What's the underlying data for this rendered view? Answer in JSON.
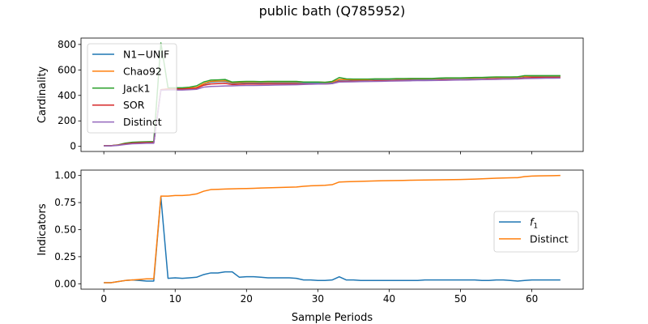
{
  "figure": {
    "title": "public bath (Q785952)"
  },
  "chart_data": [
    {
      "type": "line",
      "title": "",
      "xlabel": "",
      "ylabel": "Cardinality",
      "xlim": [
        -3.2,
        67.2
      ],
      "ylim": [
        -40,
        850
      ],
      "x_ticks": [
        0,
        10,
        20,
        30,
        40,
        50,
        60
      ],
      "x_ticklabels_visible": false,
      "y_ticks": [
        0,
        200,
        400,
        600,
        800
      ],
      "grid": false,
      "legend": "upper left",
      "x": [
        0,
        1,
        2,
        3,
        4,
        5,
        6,
        7,
        8,
        9,
        10,
        11,
        12,
        13,
        14,
        15,
        16,
        17,
        18,
        19,
        20,
        21,
        22,
        23,
        24,
        25,
        26,
        27,
        28,
        29,
        30,
        31,
        32,
        33,
        34,
        35,
        36,
        37,
        38,
        39,
        40,
        41,
        42,
        43,
        44,
        45,
        46,
        47,
        48,
        49,
        50,
        51,
        52,
        53,
        54,
        55,
        56,
        57,
        58,
        59,
        60,
        61,
        62,
        63,
        64
      ],
      "series": [
        {
          "name": "N1−UNIF",
          "color": "#1f77b4",
          "values": [
            5,
            5,
            10,
            20,
            25,
            28,
            30,
            30,
            445,
            452,
            455,
            455,
            458,
            462,
            490,
            505,
            508,
            510,
            496,
            498,
            500,
            500,
            500,
            502,
            502,
            502,
            502,
            502,
            500,
            500,
            500,
            500,
            502,
            520,
            520,
            522,
            522,
            522,
            525,
            525,
            525,
            527,
            527,
            528,
            528,
            528,
            528,
            530,
            532,
            532,
            532,
            533,
            535,
            535,
            538,
            540,
            540,
            540,
            541,
            548,
            550,
            550,
            550,
            550,
            550
          ]
        },
        {
          "name": "Chao92",
          "color": "#ff7f0e",
          "values": [
            5,
            5,
            10,
            20,
            25,
            28,
            30,
            30,
            445,
            452,
            455,
            455,
            458,
            462,
            492,
            510,
            512,
            515,
            500,
            502,
            505,
            505,
            505,
            506,
            507,
            507,
            507,
            507,
            505,
            505,
            505,
            503,
            505,
            525,
            524,
            524,
            524,
            524,
            528,
            528,
            528,
            530,
            530,
            531,
            531,
            531,
            531,
            533,
            535,
            535,
            535,
            536,
            538,
            538,
            540,
            542,
            542,
            542,
            543,
            550,
            552,
            552,
            552,
            552,
            552
          ]
        },
        {
          "name": "Jack1",
          "color": "#2ca02c",
          "values": [
            5,
            5,
            12,
            25,
            32,
            35,
            36,
            38,
            812,
            460,
            460,
            460,
            465,
            475,
            505,
            520,
            522,
            525,
            505,
            508,
            510,
            510,
            508,
            510,
            510,
            510,
            510,
            510,
            505,
            505,
            505,
            503,
            510,
            540,
            530,
            528,
            528,
            528,
            530,
            530,
            530,
            532,
            532,
            533,
            533,
            533,
            533,
            536,
            538,
            538,
            538,
            539,
            541,
            541,
            543,
            545,
            545,
            545,
            546,
            555,
            555,
            555,
            555,
            555,
            555
          ]
        },
        {
          "name": "SOR",
          "color": "#d62728",
          "values": [
            5,
            5,
            10,
            20,
            25,
            28,
            30,
            30,
            445,
            448,
            450,
            450,
            452,
            456,
            480,
            490,
            492,
            495,
            485,
            488,
            490,
            490,
            490,
            491,
            491,
            491,
            491,
            491,
            490,
            490,
            490,
            490,
            492,
            510,
            510,
            512,
            512,
            512,
            515,
            515,
            515,
            517,
            517,
            518,
            518,
            518,
            518,
            520,
            522,
            522,
            522,
            523,
            525,
            525,
            528,
            530,
            530,
            530,
            531,
            538,
            540,
            540,
            540,
            540,
            540
          ]
        },
        {
          "name": "Distinct",
          "color": "#9467bd",
          "values": [
            4,
            4,
            8,
            15,
            20,
            22,
            24,
            24,
            440,
            442,
            442,
            442,
            445,
            448,
            465,
            470,
            472,
            474,
            475,
            477,
            478,
            478,
            479,
            480,
            481,
            482,
            483,
            484,
            486,
            488,
            489,
            490,
            492,
            505,
            506,
            507,
            508,
            509,
            510,
            511,
            512,
            513,
            514,
            515,
            516,
            516,
            517,
            518,
            519,
            520,
            521,
            522,
            523,
            524,
            525,
            526,
            527,
            528,
            529,
            532,
            533,
            534,
            535,
            535,
            536
          ]
        }
      ]
    },
    {
      "type": "line",
      "title": "",
      "xlabel": "Sample Periods",
      "ylabel": "Indicators",
      "xlim": [
        -3.2,
        67.2
      ],
      "ylim": [
        -0.05,
        1.05
      ],
      "x_ticks": [
        0,
        10,
        20,
        30,
        40,
        50,
        60
      ],
      "y_ticks": [
        0.0,
        0.25,
        0.5,
        0.75,
        1.0
      ],
      "y_ticklabels": [
        "0.00",
        "0.25",
        "0.50",
        "0.75",
        "1.00"
      ],
      "grid": false,
      "legend": "center right",
      "x": [
        0,
        1,
        2,
        3,
        4,
        5,
        6,
        7,
        8,
        9,
        10,
        11,
        12,
        13,
        14,
        15,
        16,
        17,
        18,
        19,
        20,
        21,
        22,
        23,
        24,
        25,
        26,
        27,
        28,
        29,
        30,
        31,
        32,
        33,
        34,
        35,
        36,
        37,
        38,
        39,
        40,
        41,
        42,
        43,
        44,
        45,
        46,
        47,
        48,
        49,
        50,
        51,
        52,
        53,
        54,
        55,
        56,
        57,
        58,
        59,
        60,
        61,
        62,
        63,
        64
      ],
      "series": [
        {
          "name": "f",
          "name_subscript": "1",
          "color": "#1f77b4",
          "values": [
            0.01,
            0.01,
            0.02,
            0.03,
            0.035,
            0.03,
            0.025,
            0.025,
            0.8,
            0.05,
            0.055,
            0.05,
            0.055,
            0.06,
            0.085,
            0.1,
            0.1,
            0.11,
            0.11,
            0.06,
            0.065,
            0.065,
            0.06,
            0.055,
            0.055,
            0.055,
            0.055,
            0.05,
            0.035,
            0.035,
            0.03,
            0.03,
            0.035,
            0.065,
            0.035,
            0.035,
            0.03,
            0.03,
            0.03,
            0.03,
            0.03,
            0.03,
            0.03,
            0.03,
            0.03,
            0.035,
            0.035,
            0.035,
            0.035,
            0.035,
            0.035,
            0.035,
            0.035,
            0.03,
            0.03,
            0.035,
            0.035,
            0.03,
            0.025,
            0.03,
            0.035,
            0.035,
            0.035,
            0.035,
            0.035
          ]
        },
        {
          "name": "Distinct",
          "color": "#ff7f0e",
          "values": [
            0.01,
            0.01,
            0.02,
            0.03,
            0.035,
            0.04,
            0.045,
            0.045,
            0.81,
            0.81,
            0.815,
            0.815,
            0.82,
            0.83,
            0.855,
            0.87,
            0.872,
            0.875,
            0.877,
            0.879,
            0.88,
            0.882,
            0.884,
            0.886,
            0.888,
            0.89,
            0.892,
            0.894,
            0.9,
            0.905,
            0.907,
            0.91,
            0.915,
            0.94,
            0.942,
            0.944,
            0.946,
            0.948,
            0.95,
            0.952,
            0.953,
            0.954,
            0.955,
            0.956,
            0.957,
            0.958,
            0.959,
            0.96,
            0.961,
            0.962,
            0.963,
            0.965,
            0.967,
            0.97,
            0.972,
            0.975,
            0.977,
            0.979,
            0.98,
            0.99,
            0.995,
            0.997,
            0.998,
            0.999,
            1.0
          ]
        }
      ]
    }
  ]
}
